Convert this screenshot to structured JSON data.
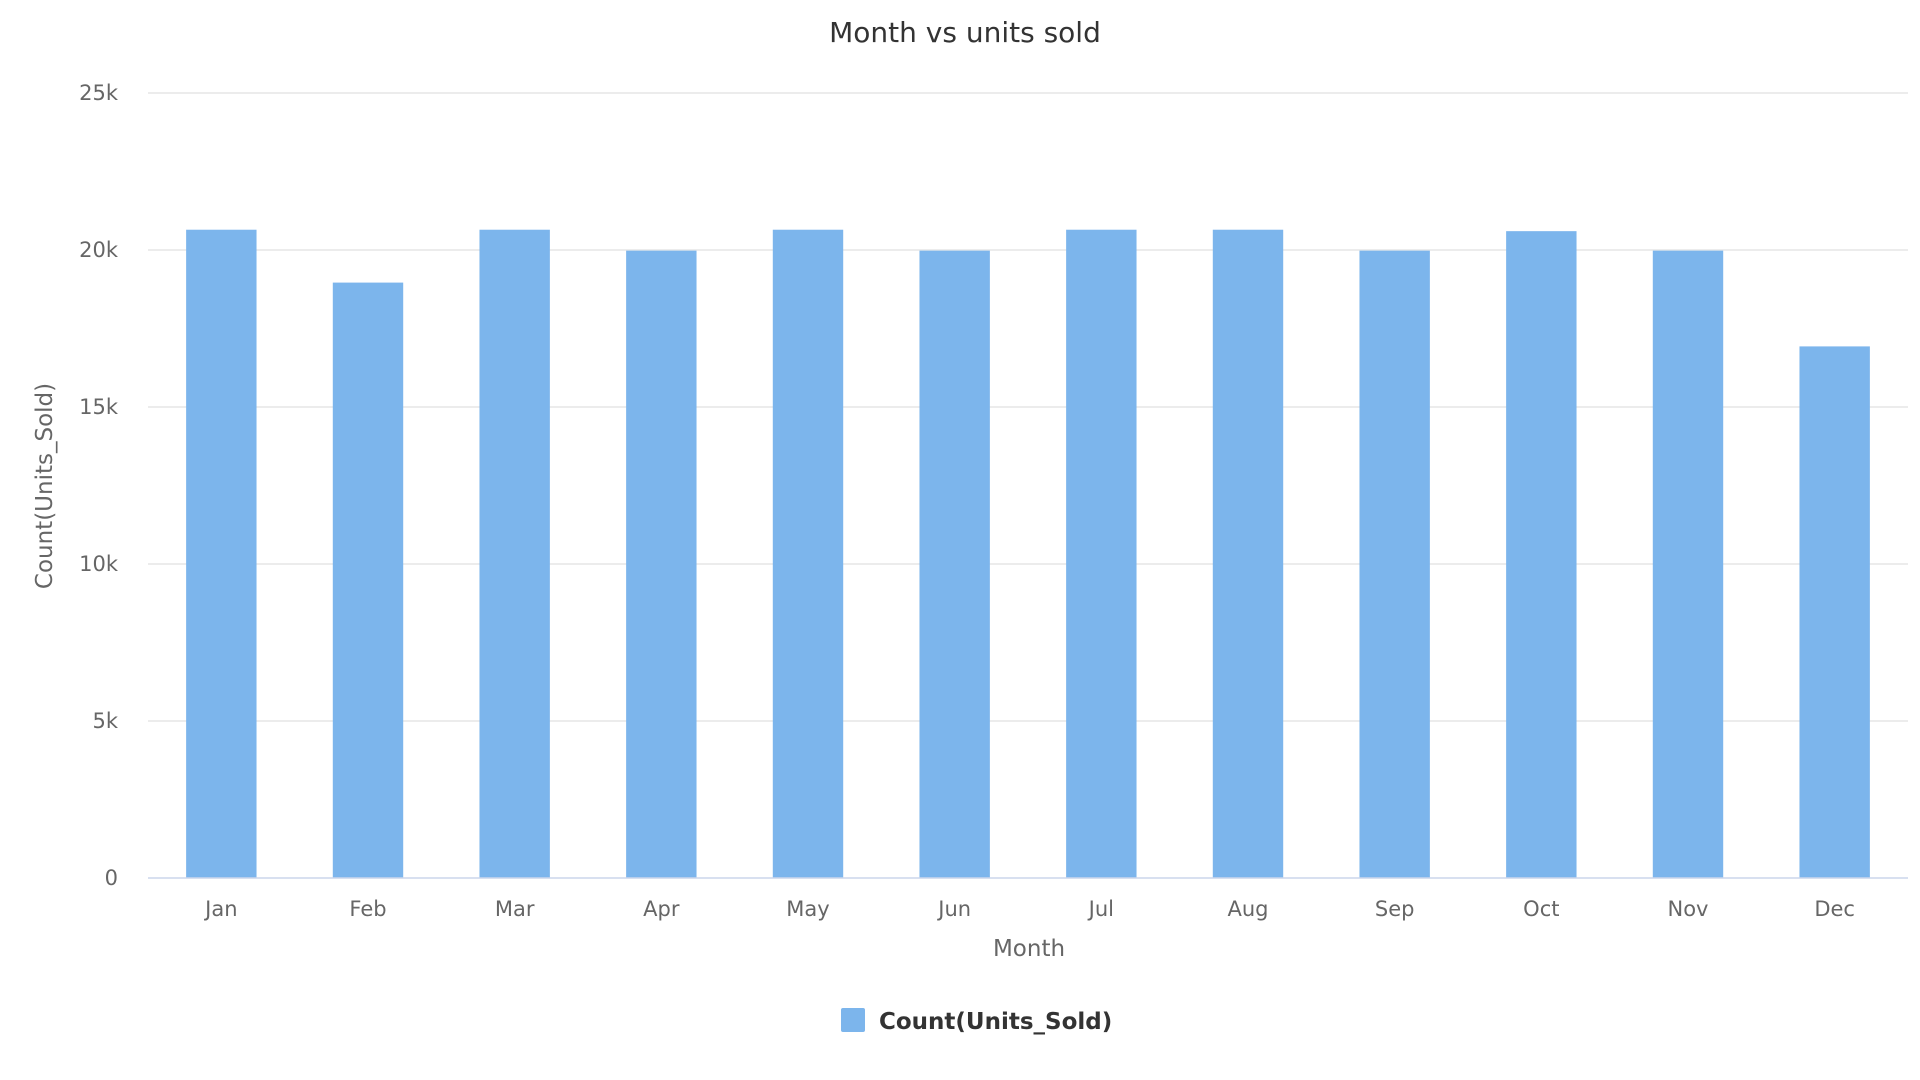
{
  "chart_data": {
    "type": "bar",
    "title": "Month vs units sold",
    "xlabel": "Month",
    "ylabel": "Count(Units_Sold)",
    "categories": [
      "Jan",
      "Feb",
      "Mar",
      "Apr",
      "May",
      "Jun",
      "Jul",
      "Aug",
      "Sep",
      "Oct",
      "Nov",
      "Dec"
    ],
    "series": [
      {
        "name": "Count(Units_Sold)",
        "color": "#7cb5ec",
        "values": [
          20646,
          18962,
          20646,
          19980,
          20646,
          19980,
          20646,
          20646,
          19980,
          20600,
          19980,
          16930
        ]
      }
    ],
    "ylim": [
      0,
      25000
    ],
    "yticks": [
      0,
      5000,
      10000,
      15000,
      20000,
      25000
    ],
    "ytick_labels": [
      "0",
      "5k",
      "10k",
      "15k",
      "20k",
      "25k"
    ],
    "grid": true,
    "legend_position": "bottom-center"
  }
}
